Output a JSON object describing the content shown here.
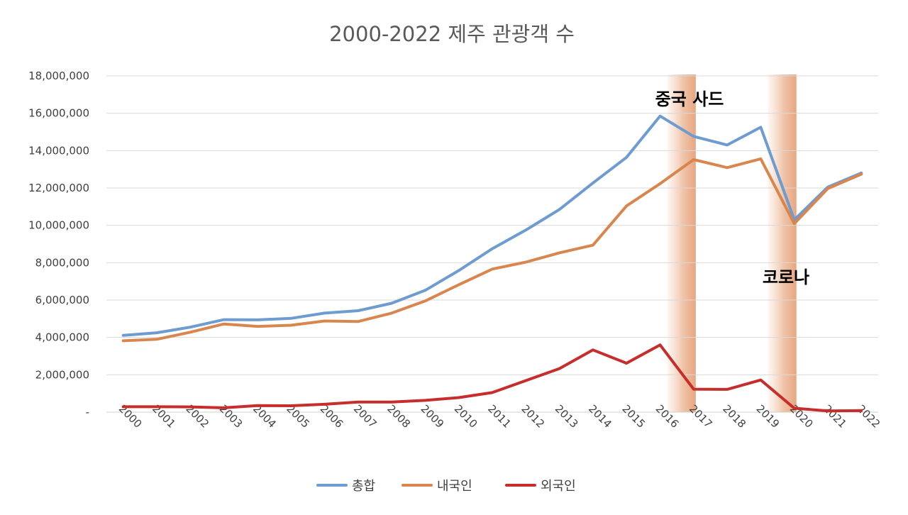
{
  "chart_data": {
    "type": "line",
    "title": "2000-2022 제주 관광객 수",
    "xlabel": "",
    "ylabel": "",
    "ylim": [
      0,
      18000000
    ],
    "y_ticks": [
      0,
      2000000,
      4000000,
      6000000,
      8000000,
      10000000,
      12000000,
      14000000,
      16000000,
      18000000
    ],
    "y_tick_labels": [
      "-",
      "2,000,000",
      "4,000,000",
      "6,000,000",
      "8,000,000",
      "10,000,000",
      "12,000,000",
      "14,000,000",
      "16,000,000",
      "18,000,000"
    ],
    "x": [
      "2000",
      "2001",
      "2002",
      "2003",
      "2004",
      "2005",
      "2006",
      "2007",
      "2008",
      "2009",
      "2010",
      "2011",
      "2012",
      "2013",
      "2014",
      "2015",
      "2016",
      "2017",
      "2018",
      "2019",
      "2020",
      "2021",
      "2022"
    ],
    "grid": true,
    "legend_position": "bottom",
    "series": [
      {
        "name": "총합",
        "color": "#6e9bd0",
        "values": [
          4110000,
          4250000,
          4550000,
          4950000,
          4940000,
          5020000,
          5300000,
          5430000,
          5830000,
          6520000,
          7580000,
          8750000,
          9750000,
          10850000,
          12270000,
          13640000,
          15850000,
          14760000,
          14300000,
          15250000,
          10300000,
          12050000,
          12800000
        ]
      },
      {
        "name": "내국인",
        "color": "#d9864e",
        "values": [
          3820000,
          3900000,
          4280000,
          4720000,
          4590000,
          4650000,
          4880000,
          4850000,
          5300000,
          5950000,
          6820000,
          7660000,
          8030000,
          8530000,
          8940000,
          11040000,
          12230000,
          13520000,
          13090000,
          13560000,
          10090000,
          11970000,
          12740000
        ]
      },
      {
        "name": "외국인",
        "color": "#c62d2b",
        "values": [
          290000,
          290000,
          280000,
          230000,
          350000,
          340000,
          420000,
          540000,
          540000,
          630000,
          780000,
          1050000,
          1690000,
          2330000,
          3330000,
          2620000,
          3600000,
          1230000,
          1220000,
          1720000,
          210000,
          70000,
          80000
        ]
      }
    ],
    "highlights": [
      {
        "x": "2017",
        "label": "중국 사드"
      },
      {
        "x": "2020",
        "label": "코로나"
      }
    ]
  }
}
